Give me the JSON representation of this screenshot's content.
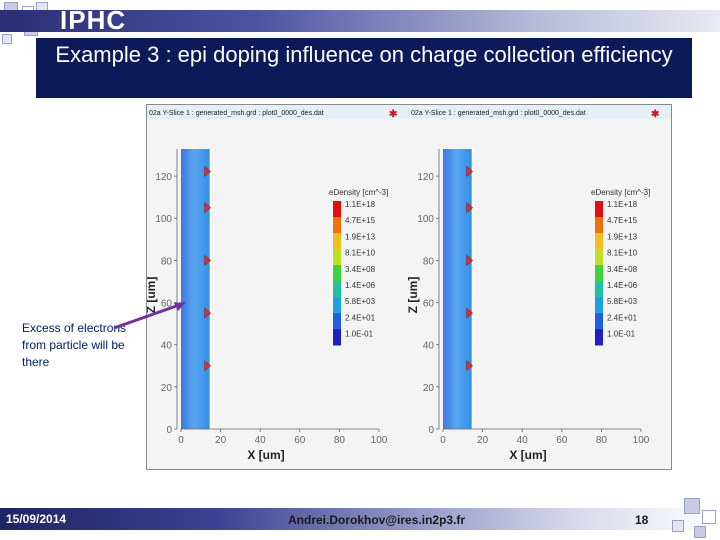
{
  "header": {
    "brand": "IPHC"
  },
  "slide": {
    "title": "Example 3 : epi doping influence on charge collection efficiency"
  },
  "annotation": {
    "text": "Excess of electrons from particle will be there"
  },
  "footer": {
    "date": "15/09/2014",
    "author": "Andrei.Dorokhov@ires.in2p3.fr",
    "page": "18"
  },
  "plots": [
    {
      "header_text": "02a Y-Slice 1 : generated_msh.grd : plot0_0000_des.dat"
    },
    {
      "header_text": "02a Y-Slice 1 : generated_msh.grd : plot0_0000_des.dat"
    }
  ],
  "axes": {
    "xlabel": "X [um]",
    "ylabel": "Z [um]",
    "xticks": [
      "0",
      "20",
      "40",
      "60",
      "80",
      "100"
    ],
    "yticks": [
      "0",
      "20",
      "40",
      "60",
      "80",
      "100",
      "120"
    ]
  },
  "legend": {
    "title": "eDensity [cm^-3]",
    "labels": [
      "1.1E+18",
      "4.7E+15",
      "1.9E+13",
      "8.1E+10",
      "3.4E+08",
      "1.4E+06",
      "5.8E+03",
      "2.4E+01",
      "1.0E-01"
    ],
    "colors": [
      "#e01010",
      "#f07010",
      "#f0c020",
      "#c0e020",
      "#40d040",
      "#20c0a0",
      "#20a0e0",
      "#2060e0",
      "#2020c0"
    ]
  }
}
